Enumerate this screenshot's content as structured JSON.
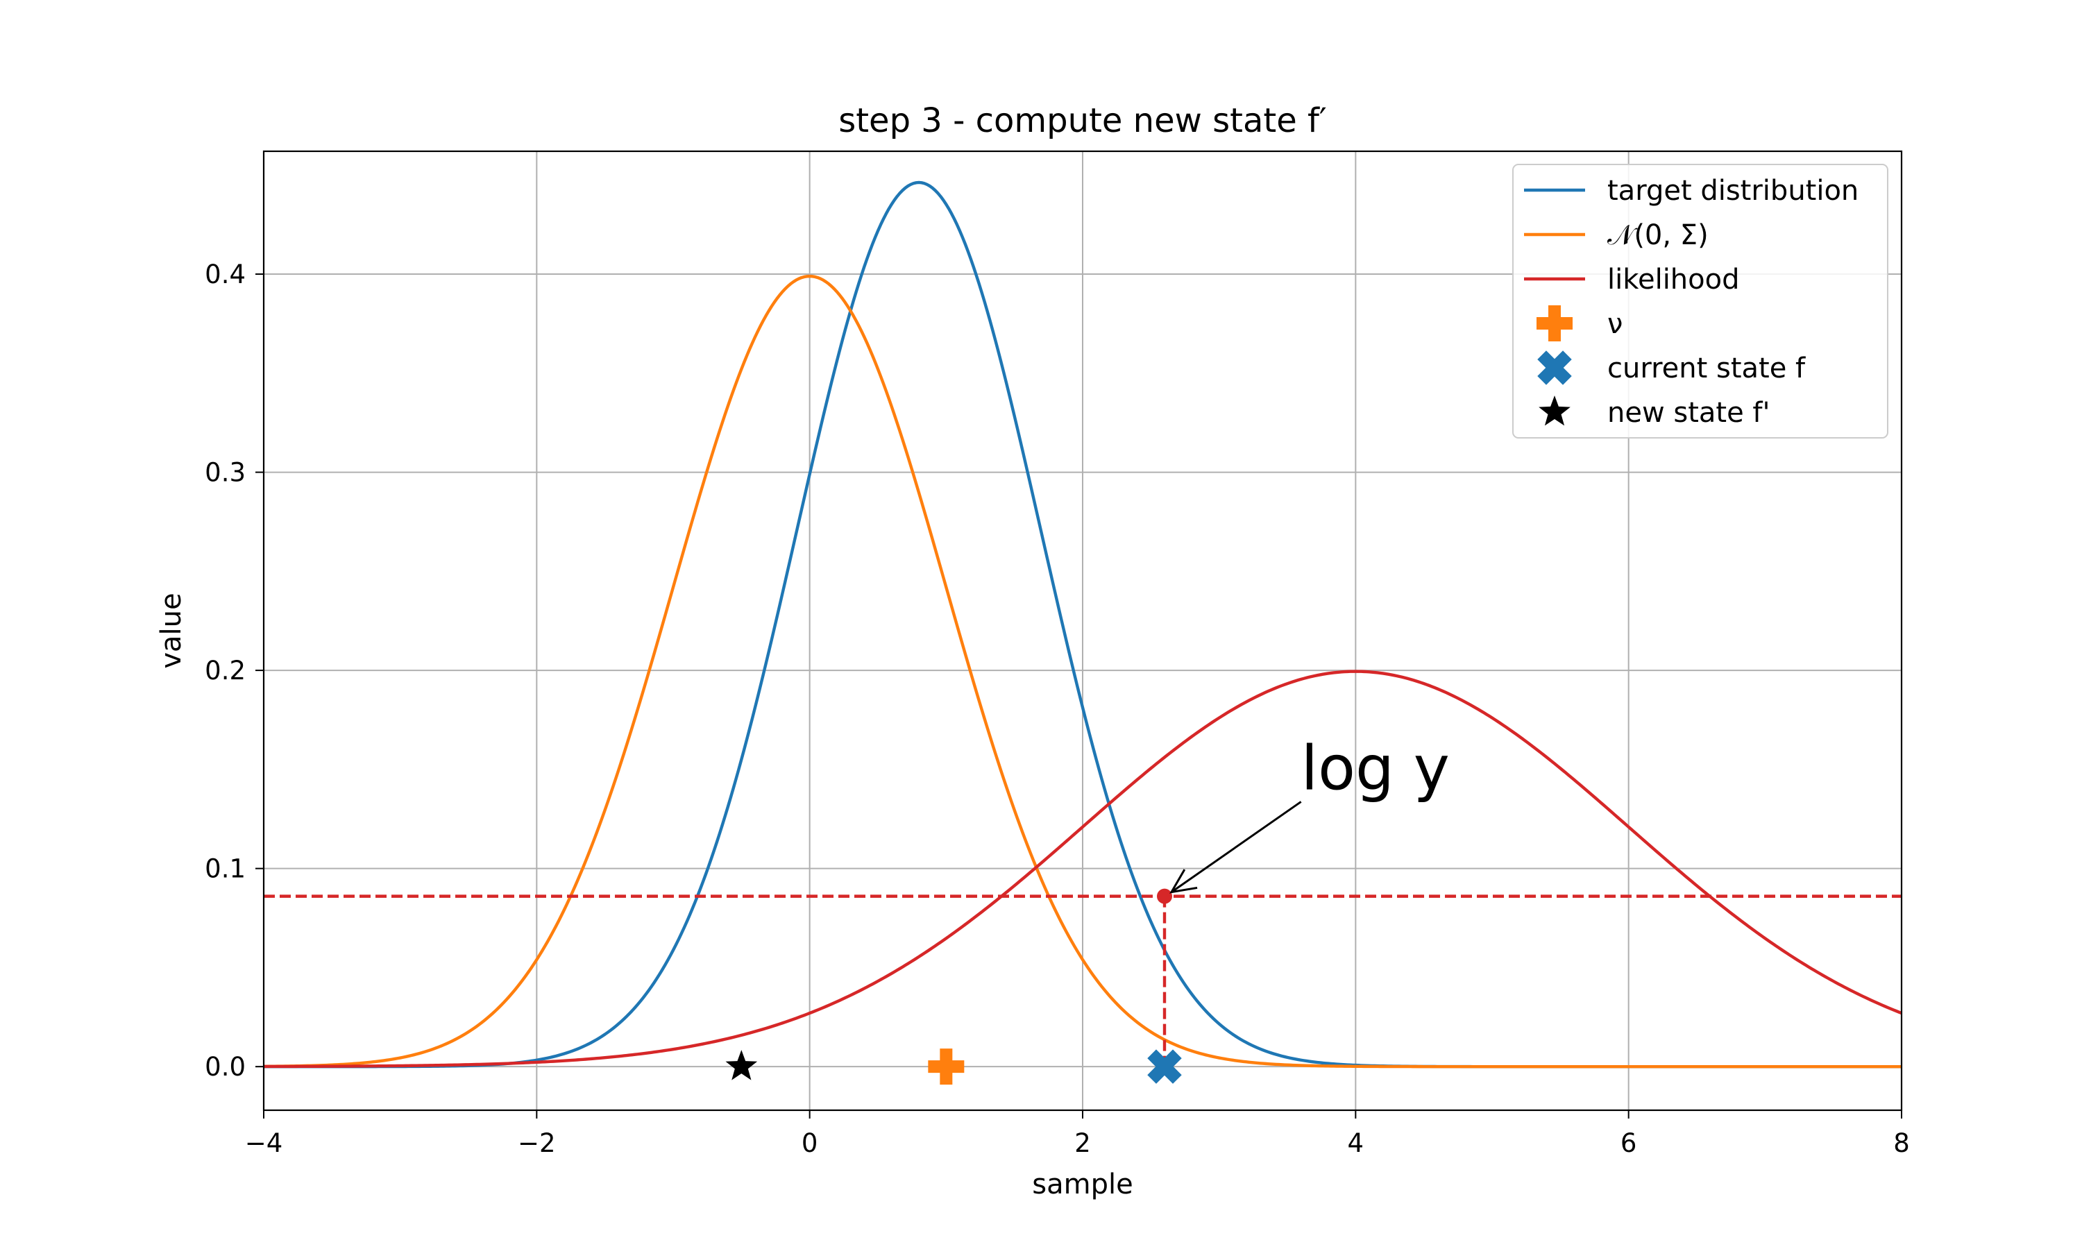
{
  "chart_data": {
    "type": "line",
    "title": "step 3 - compute new state f′",
    "xlabel": "sample",
    "ylabel": "value",
    "xlim": [
      -4,
      8
    ],
    "ylim": [
      -0.022,
      0.462
    ],
    "xticks": [
      -4,
      -2,
      0,
      2,
      4,
      6,
      8
    ],
    "xtick_labels": [
      "−4",
      "−2",
      "0",
      "2",
      "4",
      "6",
      "8"
    ],
    "yticks": [
      0.0,
      0.1,
      0.2,
      0.3,
      0.4
    ],
    "ytick_labels": [
      "0.0",
      "0.1",
      "0.2",
      "0.3",
      "0.4"
    ],
    "grid": true,
    "legend_position": "upper right",
    "series": [
      {
        "name": "target distribution",
        "color": "#1f77b4",
        "kind": "normal_pdf",
        "mean": 0.8,
        "std": 0.894,
        "samples": [
          {
            "x": -4,
            "y": 0.0
          },
          {
            "x": -2,
            "y": 0.0024
          },
          {
            "x": -1,
            "y": 0.058
          },
          {
            "x": 0,
            "y": 0.3
          },
          {
            "x": 0.8,
            "y": 0.446
          },
          {
            "x": 2,
            "y": 0.18
          },
          {
            "x": 3,
            "y": 0.022
          },
          {
            "x": 4,
            "y": 0.0006
          },
          {
            "x": 8,
            "y": 0.0
          }
        ]
      },
      {
        "name": "𝒩(0, Σ)",
        "color": "#ff7f0e",
        "kind": "normal_pdf",
        "mean": 0,
        "std": 1,
        "samples": [
          {
            "x": -4,
            "y": 0.0001
          },
          {
            "x": -2,
            "y": 0.054
          },
          {
            "x": -1,
            "y": 0.242
          },
          {
            "x": 0,
            "y": 0.399
          },
          {
            "x": 1,
            "y": 0.242
          },
          {
            "x": 2,
            "y": 0.054
          },
          {
            "x": 3,
            "y": 0.0044
          },
          {
            "x": 8,
            "y": 0.0
          }
        ]
      },
      {
        "name": "likelihood",
        "color": "#d62728",
        "kind": "normal_pdf",
        "mean": 4,
        "std": 2,
        "samples": [
          {
            "x": -4,
            "y": 0.0001
          },
          {
            "x": -2,
            "y": 0.0022
          },
          {
            "x": 0,
            "y": 0.027
          },
          {
            "x": 2,
            "y": 0.121
          },
          {
            "x": 4,
            "y": 0.199
          },
          {
            "x": 6,
            "y": 0.121
          },
          {
            "x": 8,
            "y": 0.027
          }
        ]
      }
    ],
    "points": [
      {
        "name": "ν",
        "x": 1.0,
        "y": 0.0,
        "marker": "plus",
        "color": "#ff7f0e"
      },
      {
        "name": "current state f",
        "x": 2.6,
        "y": 0.0,
        "marker": "x",
        "color": "#1f77b4"
      },
      {
        "name": "new state f'",
        "x": -0.5,
        "y": 0.0,
        "marker": "star",
        "color": "#000000"
      }
    ],
    "annotations": {
      "threshold_y": 0.086,
      "threshold_x": 2.6,
      "threshold_color": "#d62728",
      "log_y_text": "log y",
      "log_y_text_anchor": {
        "x": 3.6,
        "y": 0.14
      },
      "log_y_arrow_target": {
        "x": 2.6,
        "y": 0.086
      }
    }
  }
}
